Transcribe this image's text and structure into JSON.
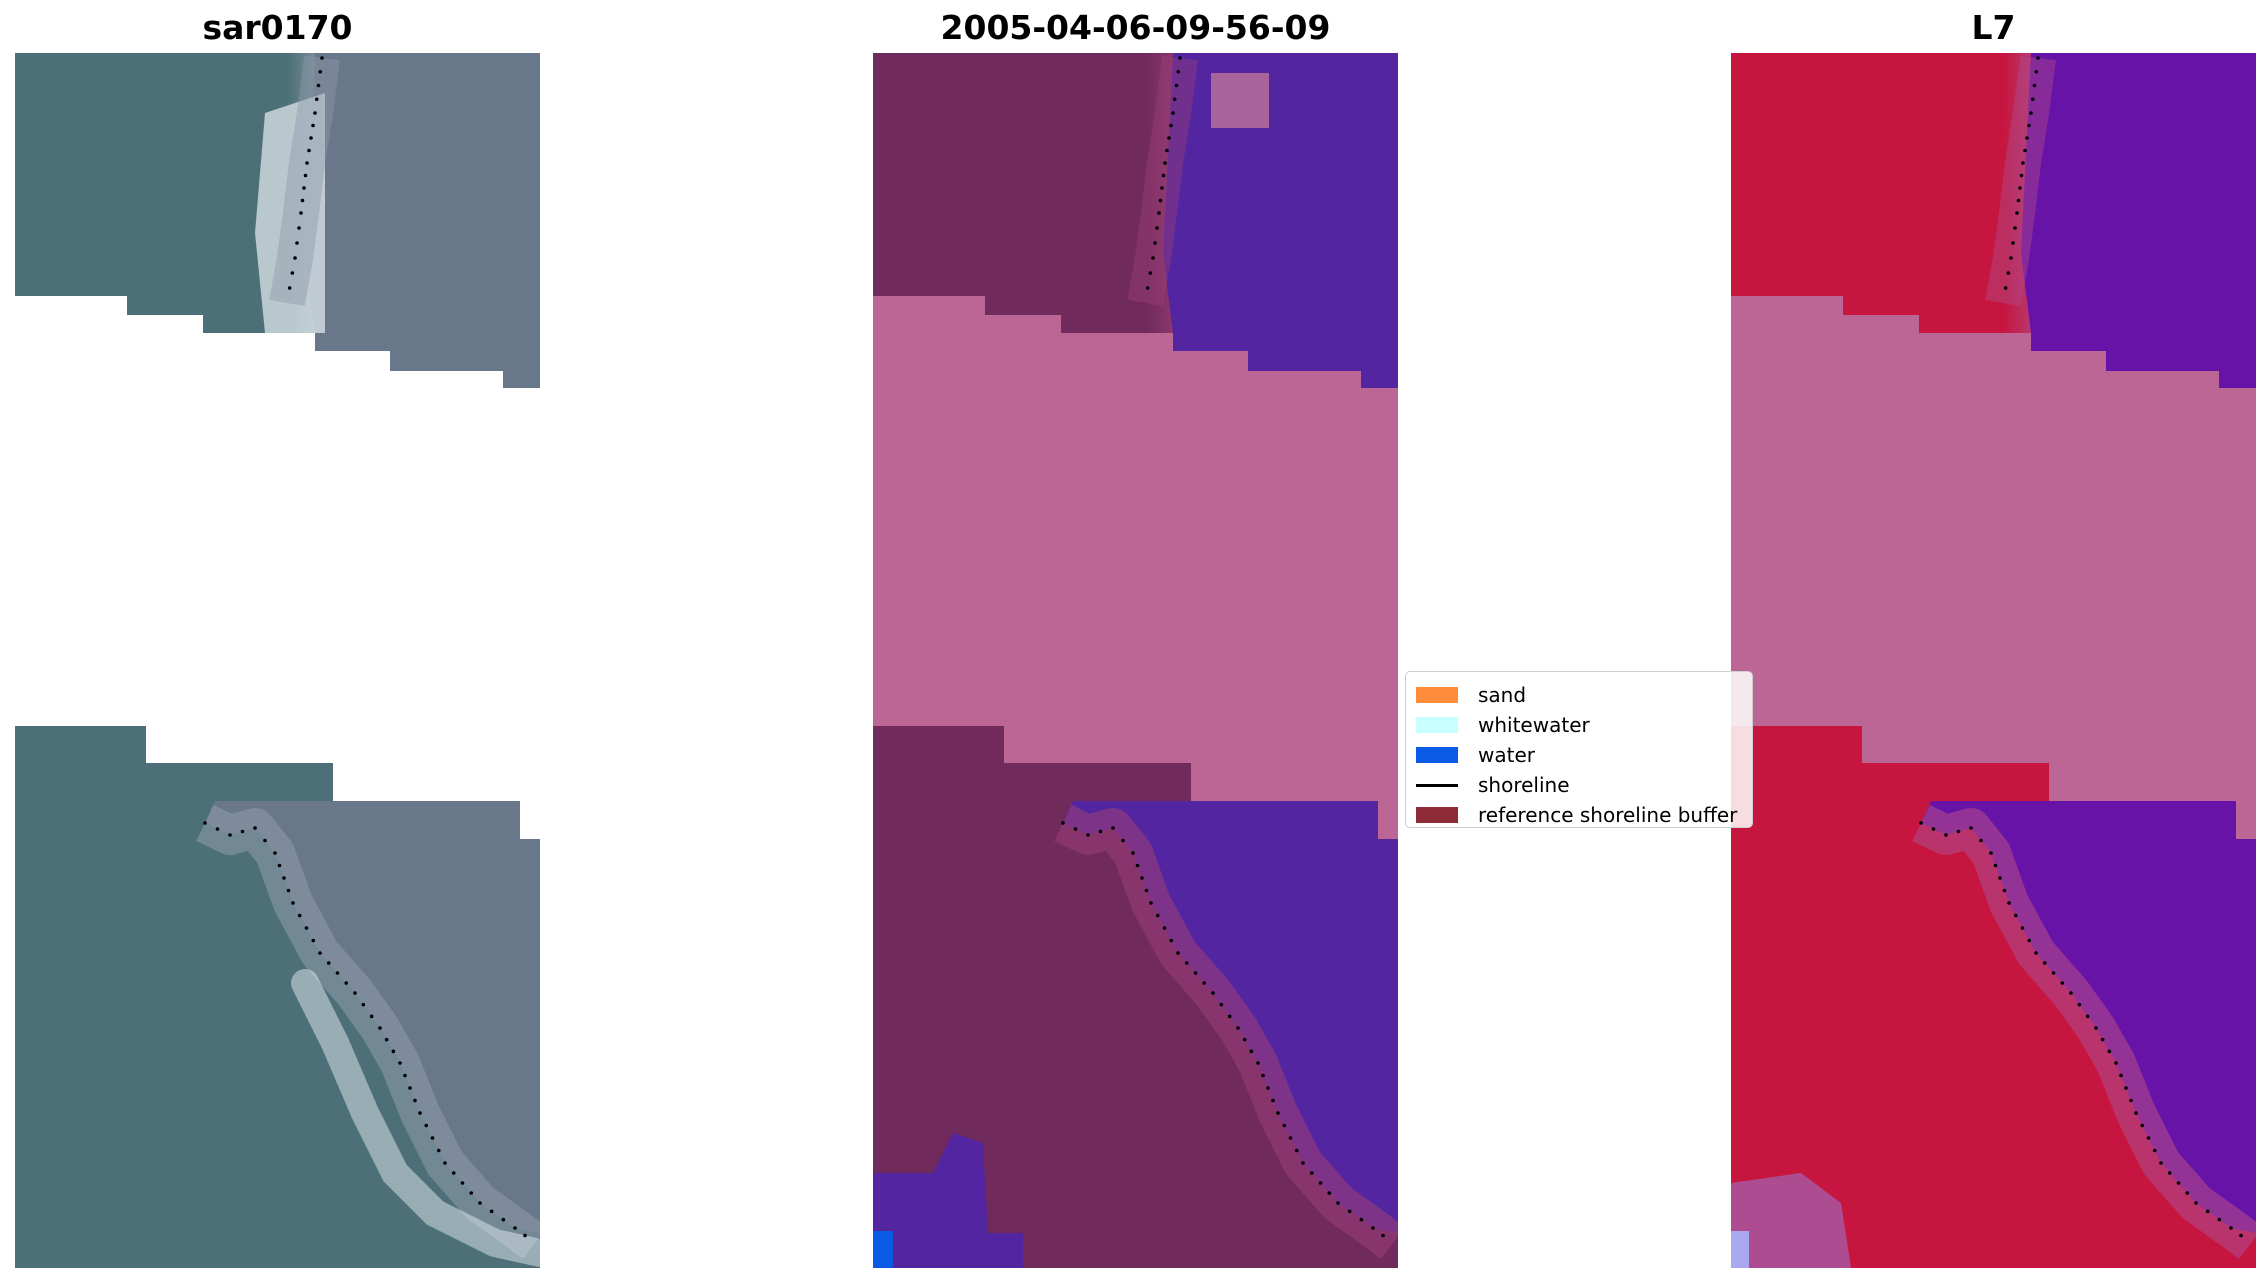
{
  "titles": {
    "left": "sar0170",
    "center": "2005-04-06-09-56-09",
    "right": "L7"
  },
  "legend": {
    "items": [
      {
        "label": "sand",
        "color": "#ff8c3a",
        "kind": "patch"
      },
      {
        "label": "whitewater",
        "color": "#c8ffff",
        "kind": "patch"
      },
      {
        "label": "water",
        "color": "#0a5ae6",
        "kind": "patch"
      },
      {
        "label": "shoreline",
        "color": "#000000",
        "kind": "line"
      },
      {
        "label": "reference shoreline buffer",
        "color": "#8c2a35",
        "kind": "patch"
      }
    ]
  },
  "colors": {
    "rgb_land": "#4d6f78",
    "rgb_sea": "#68778a",
    "rgb_surf": "#dce6ea",
    "class_land": "#712a5c",
    "class_sea": "#5325a0",
    "class_nodata": "#bc6696",
    "class_water": "#0a5ae6",
    "ndwi_land": "#c6163f",
    "ndwi_sea": "#6813a8",
    "ndwi_nodata": "#bc6696",
    "shoreline_dots": "#000000"
  }
}
